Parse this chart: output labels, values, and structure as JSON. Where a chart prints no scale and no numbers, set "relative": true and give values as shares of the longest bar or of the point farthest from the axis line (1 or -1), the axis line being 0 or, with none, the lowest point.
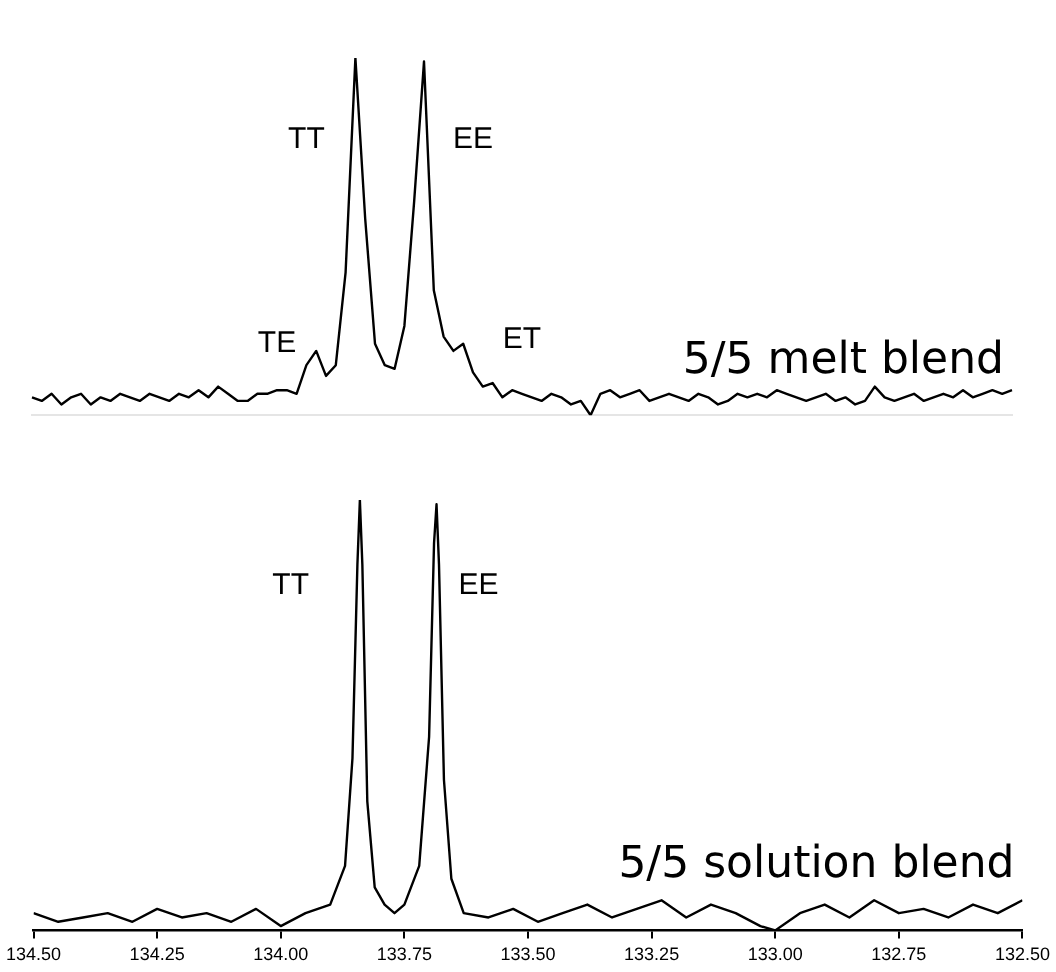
{
  "chart_data": [
    {
      "type": "line",
      "relative": true,
      "grid": false,
      "marker": "none",
      "categories": [
        null,
        null,
        null,
        null,
        null,
        null,
        null,
        null,
        null,
        null,
        null,
        null,
        null,
        null,
        null,
        null,
        null,
        null,
        null,
        null,
        null,
        null,
        null,
        null,
        null,
        null,
        null,
        null,
        null,
        null,
        null,
        null,
        null,
        null,
        null,
        null,
        null,
        null,
        null,
        null,
        null,
        null,
        null,
        null,
        null,
        null,
        null,
        null,
        null,
        null,
        null,
        null,
        null,
        null,
        null,
        null,
        null,
        null,
        null,
        null,
        null,
        null,
        null,
        null,
        null,
        null,
        null,
        null,
        null,
        null,
        null,
        null,
        null,
        null,
        null,
        null,
        null,
        null,
        null,
        null,
        null,
        null,
        null,
        null,
        null,
        null,
        null,
        null,
        null,
        null,
        null,
        null,
        null,
        null,
        null,
        null,
        null,
        null,
        null,
        null,
        null
      ],
      "annotations": [
        "TT",
        "EE",
        "TE",
        "ET"
      ],
      "series": [
        {
          "name": "5/5 melt blend",
          "color": "#000000",
          "values": [
            0.05,
            0.04,
            0.06,
            0.03,
            0.05,
            0.06,
            0.03,
            0.05,
            0.04,
            0.06,
            0.05,
            0.04,
            0.06,
            0.05,
            0.04,
            0.06,
            0.05,
            0.07,
            0.05,
            0.08,
            0.06,
            0.04,
            0.04,
            0.06,
            0.06,
            0.07,
            0.07,
            0.06,
            0.14,
            0.18,
            0.11,
            0.14,
            0.4,
            1,
            0.55,
            0.2,
            0.14,
            0.13,
            0.25,
            0.6,
            0.99,
            0.35,
            0.22,
            0.18,
            0.2,
            0.12,
            0.08,
            0.09,
            0.05,
            0.07,
            0.06,
            0.05,
            0.04,
            0.06,
            0.05,
            0.03,
            0.04,
            0,
            0.06,
            0.07,
            0.05,
            0.06,
            0.07,
            0.04,
            0.05,
            0.06,
            0.05,
            0.04,
            0.06,
            0.05,
            0.03,
            0.04,
            0.06,
            0.05,
            0.06,
            0.05,
            0.07,
            0.06,
            0.05,
            0.04,
            0.05,
            0.06,
            0.04,
            0.05,
            0.03,
            0.04,
            0.08,
            0.05,
            0.04,
            0.05,
            0.06,
            0.04,
            0.05,
            0.06,
            0.05,
            0.07,
            0.05,
            0.06,
            0.07,
            0.06,
            0.07
          ]
        }
      ]
    },
    {
      "type": "line",
      "relative": true,
      "tick_labels": "x",
      "grid": false,
      "marker": "none",
      "xlim": [
        134.5,
        132.5
      ],
      "xticks": [
        {
          "value": 134.5,
          "label": "134.50"
        },
        134.25,
        {
          "value": 134,
          "label": "134.00"
        },
        133.75,
        {
          "value": 133.5,
          "label": "133.50"
        },
        133.25,
        {
          "value": 133,
          "label": "133.00"
        },
        132.75,
        {
          "value": 132.5,
          "label": "132.50"
        }
      ],
      "annotations": [
        "TT",
        "EE"
      ],
      "series": [
        {
          "name": "5/5 solution blend",
          "color": "#000000",
          "x": [
            134.5,
            134.45,
            134.4,
            134.35,
            134.3,
            134.25,
            134.2,
            134.15,
            134.1,
            134.05,
            134,
            133.95,
            133.9,
            133.87,
            133.855,
            133.845,
            133.84,
            133.835,
            133.825,
            133.81,
            133.79,
            133.77,
            133.75,
            133.72,
            133.7,
            133.69,
            133.685,
            133.68,
            133.67,
            133.655,
            133.63,
            133.58,
            133.53,
            133.48,
            133.43,
            133.38,
            133.33,
            133.28,
            133.23,
            133.18,
            133.13,
            133.08,
            133.03,
            133,
            132.95,
            132.9,
            132.85,
            132.8,
            132.75,
            132.7,
            132.65,
            132.6,
            132.55,
            132.5
          ],
          "values": [
            0.04,
            0.02,
            0.03,
            0.04,
            0.02,
            0.05,
            0.03,
            0.04,
            0.02,
            0.05,
            0.01,
            0.04,
            0.06,
            0.15,
            0.4,
            0.85,
            1,
            0.85,
            0.3,
            0.1,
            0.06,
            0.04,
            0.06,
            0.15,
            0.45,
            0.9,
            0.99,
            0.85,
            0.35,
            0.12,
            0.04,
            0.03,
            0.05,
            0.02,
            0.04,
            0.06,
            0.03,
            0.05,
            0.07,
            0.03,
            0.06,
            0.04,
            0.01,
            0,
            0.04,
            0.06,
            0.03,
            0.07,
            0.04,
            0.05,
            0.03,
            0.06,
            0.04,
            0.07
          ]
        }
      ]
    }
  ]
}
